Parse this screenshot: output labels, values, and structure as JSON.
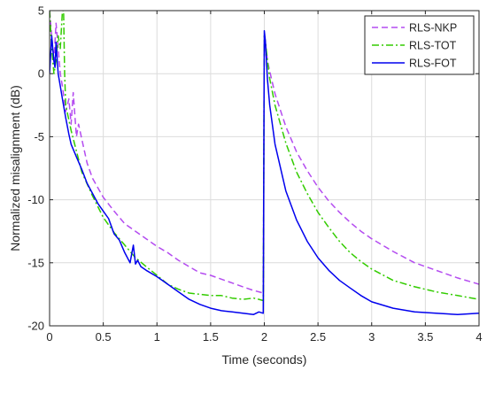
{
  "chart_data": {
    "type": "line",
    "xlabel": "Time (seconds)",
    "ylabel": "Normalized misalignment (dB)",
    "xlim": [
      0,
      4
    ],
    "ylim": [
      -20,
      5
    ],
    "xticks": [
      0,
      0.5,
      1,
      1.5,
      2,
      2.5,
      3,
      3.5,
      4
    ],
    "yticks": [
      5,
      0,
      -5,
      -10,
      -15,
      -20
    ],
    "grid": true,
    "legend_position": "top-right",
    "series": [
      {
        "name": "RLS-NKP",
        "color": "#b44cf0",
        "dash": "dashed",
        "x": [
          0,
          0.02,
          0.04,
          0.06,
          0.08,
          0.1,
          0.12,
          0.15,
          0.18,
          0.2,
          0.22,
          0.25,
          0.27,
          0.3,
          0.35,
          0.4,
          0.5,
          0.6,
          0.7,
          0.8,
          0.9,
          1.0,
          1.1,
          1.2,
          1.3,
          1.4,
          1.5,
          1.6,
          1.7,
          1.8,
          1.9,
          1.95,
          1.99,
          2.0,
          2.01,
          2.03,
          2.05,
          2.1,
          2.2,
          2.3,
          2.4,
          2.5,
          2.6,
          2.7,
          2.8,
          2.9,
          3.0,
          3.2,
          3.4,
          3.6,
          3.8,
          4.0
        ],
        "y": [
          5,
          3,
          1,
          4,
          2,
          0,
          -1,
          -3,
          -2,
          -4,
          -1.5,
          -5,
          -4,
          -5.2,
          -7.1,
          -8.3,
          -9.8,
          -10.9,
          -11.9,
          -12.5,
          -13.1,
          -13.7,
          -14.2,
          -14.8,
          -15.3,
          -15.8,
          -16.0,
          -16.3,
          -16.6,
          -16.9,
          -17.2,
          -17.3,
          -17.4,
          3.0,
          2.5,
          1.0,
          0.2,
          -1.6,
          -4.2,
          -6.2,
          -7.7,
          -9.0,
          -10.1,
          -11.0,
          -11.8,
          -12.5,
          -13.1,
          -14.1,
          -15.0,
          -15.6,
          -16.2,
          -16.7
        ]
      },
      {
        "name": "RLS-TOT",
        "color": "#33cc00",
        "dash": "dashdot",
        "x": [
          0,
          0.02,
          0.04,
          0.06,
          0.08,
          0.1,
          0.12,
          0.13,
          0.14,
          0.15,
          0.2,
          0.3,
          0.4,
          0.5,
          0.6,
          0.7,
          0.8,
          0.9,
          1.0,
          1.1,
          1.2,
          1.3,
          1.4,
          1.5,
          1.6,
          1.7,
          1.8,
          1.9,
          1.95,
          1.99,
          2.0,
          2.01,
          2.03,
          2.05,
          2.1,
          2.2,
          2.3,
          2.4,
          2.5,
          2.6,
          2.7,
          2.8,
          2.9,
          3.0,
          3.2,
          3.4,
          3.6,
          3.8,
          4.0
        ],
        "y": [
          5,
          2,
          0,
          1,
          3,
          2,
          5,
          5,
          0,
          -2.5,
          -4.5,
          -7.8,
          -9.7,
          -11.4,
          -12.6,
          -13.6,
          -14.6,
          -15.3,
          -16.0,
          -16.7,
          -17.1,
          -17.4,
          -17.5,
          -17.6,
          -17.6,
          -17.8,
          -17.9,
          -17.8,
          -17.9,
          -18.0,
          3.0,
          2.6,
          1.0,
          -0.4,
          -2.5,
          -5.5,
          -7.8,
          -9.5,
          -11.0,
          -12.2,
          -13.3,
          -14.2,
          -14.9,
          -15.5,
          -16.4,
          -16.9,
          -17.3,
          -17.6,
          -17.9
        ]
      },
      {
        "name": "RLS-FOT",
        "color": "#0000ee",
        "dash": "solid",
        "x": [
          0,
          0.01,
          0.02,
          0.03,
          0.04,
          0.05,
          0.06,
          0.08,
          0.1,
          0.12,
          0.15,
          0.18,
          0.2,
          0.25,
          0.3,
          0.35,
          0.4,
          0.45,
          0.5,
          0.55,
          0.6,
          0.65,
          0.7,
          0.75,
          0.78,
          0.8,
          0.82,
          0.85,
          0.9,
          1.0,
          1.1,
          1.2,
          1.3,
          1.4,
          1.5,
          1.6,
          1.7,
          1.8,
          1.9,
          1.95,
          1.99,
          2.0,
          2.01,
          2.02,
          2.03,
          2.05,
          2.1,
          2.2,
          2.3,
          2.4,
          2.5,
          2.6,
          2.7,
          2.8,
          2.9,
          3.0,
          3.2,
          3.4,
          3.6,
          3.8,
          4.0
        ],
        "y": [
          0,
          1.5,
          3,
          2,
          1,
          0.5,
          2.5,
          0,
          -1,
          -2,
          -3.5,
          -4.8,
          -5.6,
          -6.6,
          -7.6,
          -8.7,
          -9.5,
          -10.3,
          -10.9,
          -11.5,
          -12.7,
          -13.2,
          -14.2,
          -15.0,
          -13.6,
          -15.1,
          -14.8,
          -15.3,
          -15.6,
          -16.1,
          -16.7,
          -17.3,
          -17.9,
          -18.3,
          -18.6,
          -18.8,
          -18.9,
          -19.0,
          -19.1,
          -18.9,
          -19.0,
          3.4,
          2.6,
          1.0,
          -0.5,
          -2.5,
          -5.6,
          -9.3,
          -11.6,
          -13.3,
          -14.6,
          -15.6,
          -16.4,
          -17.0,
          -17.6,
          -18.1,
          -18.6,
          -18.9,
          -19.0,
          -19.1,
          -19.0
        ]
      }
    ]
  }
}
